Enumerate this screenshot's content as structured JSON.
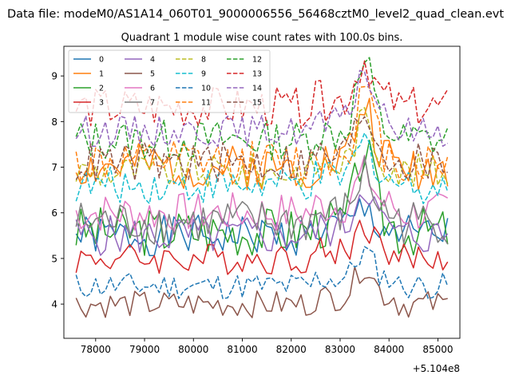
{
  "chart_data": {
    "type": "line",
    "suptitle": "Data file: modeM0/AS1A14_060T01_9000006556_56468cztM0_level2_quad_clean.evt",
    "title": "Quadrant 1 module wise count rates with 100.0s bins.",
    "xlabel": "",
    "ylabel": "",
    "x_offset_label": "+5.104e8",
    "x_start": 77600,
    "x_step": 100,
    "xlim": [
      77350,
      85450
    ],
    "ylim": [
      3.25,
      9.65
    ],
    "x_ticks": [
      78000,
      79000,
      80000,
      81000,
      82000,
      83000,
      84000,
      85000
    ],
    "x_tick_labels": [
      "78000",
      "79000",
      "80000",
      "81000",
      "82000",
      "83000",
      "84000",
      "85000"
    ],
    "y_ticks": [
      4,
      5,
      6,
      7,
      8,
      9
    ],
    "y_tick_labels": [
      "4",
      "5",
      "6",
      "7",
      "8",
      "9"
    ],
    "grid": false,
    "legend_position": "top-left",
    "legend_columns": 4,
    "series": [
      {
        "name": "0",
        "color": "#1f77b4",
        "dash": "solid",
        "base": 5.5,
        "amp": 0.45,
        "seed": 1,
        "burst": 0.4
      },
      {
        "name": "1",
        "color": "#ff7f0e",
        "dash": "solid",
        "base": 7.0,
        "amp": 0.5,
        "seed": 2,
        "burst": 1.2
      },
      {
        "name": "2",
        "color": "#2ca02c",
        "dash": "solid",
        "base": 5.6,
        "amp": 0.55,
        "seed": 3,
        "burst": 1.6
      },
      {
        "name": "3",
        "color": "#d62728",
        "dash": "solid",
        "base": 5.0,
        "amp": 0.35,
        "seed": 4,
        "burst": 0.6
      },
      {
        "name": "4",
        "color": "#9467bd",
        "dash": "solid",
        "base": 5.5,
        "amp": 0.45,
        "seed": 5,
        "burst": 1.0
      },
      {
        "name": "5",
        "color": "#8c564b",
        "dash": "solid",
        "base": 4.0,
        "amp": 0.3,
        "seed": 6,
        "burst": 0.7
      },
      {
        "name": "6",
        "color": "#e377c2",
        "dash": "solid",
        "base": 6.0,
        "amp": 0.45,
        "seed": 7,
        "burst": 0.7
      },
      {
        "name": "7",
        "color": "#7f7f7f",
        "dash": "solid",
        "base": 5.8,
        "amp": 0.5,
        "seed": 8,
        "burst": 0.9
      },
      {
        "name": "8",
        "color": "#bcbd22",
        "dash": "dashed",
        "base": 6.9,
        "amp": 0.4,
        "seed": 9,
        "burst": 1.0
      },
      {
        "name": "9",
        "color": "#17becf",
        "dash": "dashed",
        "base": 6.6,
        "amp": 0.4,
        "seed": 10,
        "burst": 0.8
      },
      {
        "name": "10",
        "color": "#1f77b4",
        "dash": "dashed",
        "base": 4.4,
        "amp": 0.3,
        "seed": 11,
        "burst": 0.6
      },
      {
        "name": "11",
        "color": "#ff7f0e",
        "dash": "dashed",
        "base": 7.1,
        "amp": 0.5,
        "seed": 12,
        "burst": 1.4
      },
      {
        "name": "12",
        "color": "#2ca02c",
        "dash": "dashed",
        "base": 7.6,
        "amp": 0.45,
        "seed": 13,
        "burst": 1.5
      },
      {
        "name": "13",
        "color": "#d62728",
        "dash": "dashed",
        "base": 8.3,
        "amp": 0.45,
        "seed": 14,
        "burst": 0.9
      },
      {
        "name": "14",
        "color": "#9467bd",
        "dash": "dashed",
        "base": 7.8,
        "amp": 0.35,
        "seed": 15,
        "burst": 1.2
      },
      {
        "name": "15",
        "color": "#8c564b",
        "dash": "dashed",
        "base": 7.1,
        "amp": 0.45,
        "seed": 16,
        "burst": 1.0
      }
    ]
  }
}
